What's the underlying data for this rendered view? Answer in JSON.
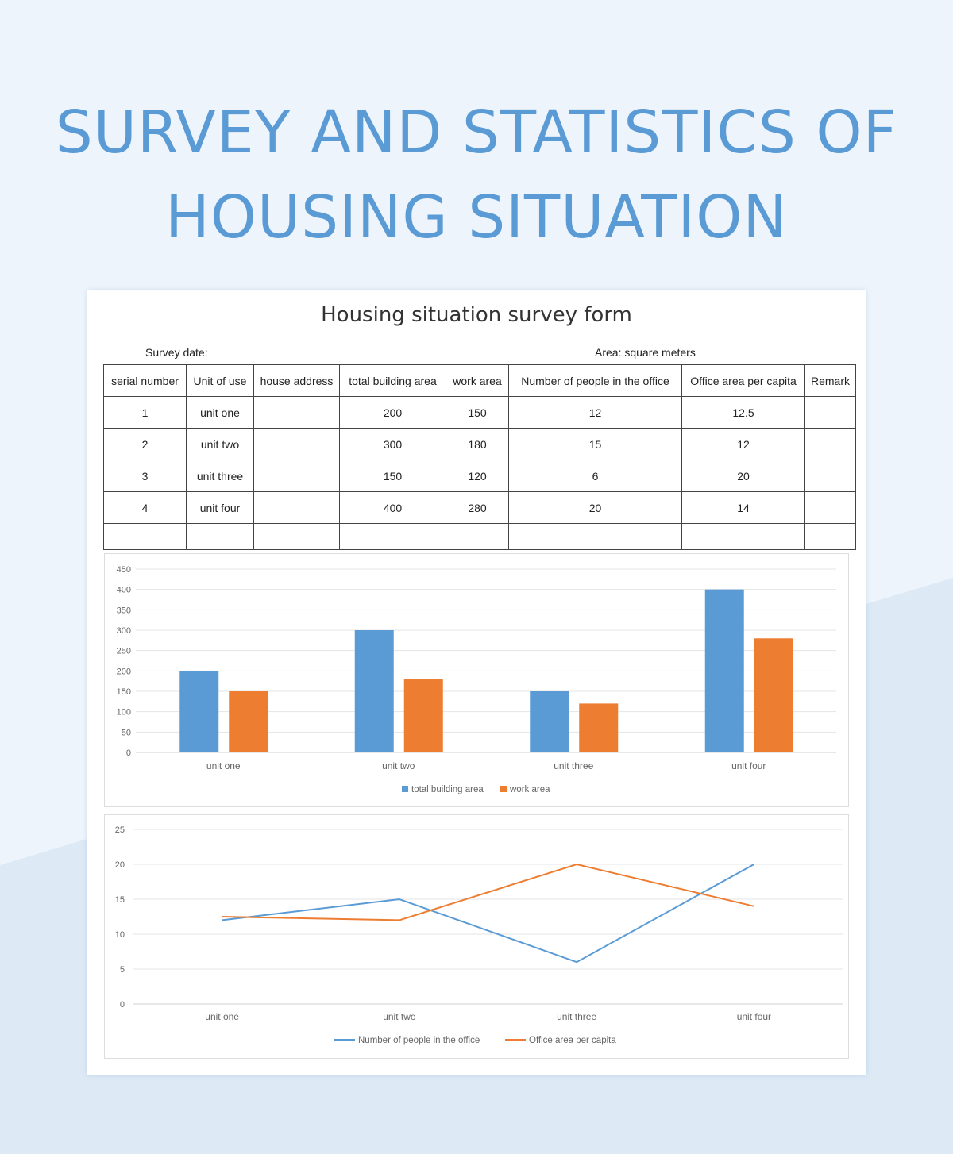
{
  "page": {
    "title_line1": "SURVEY AND STATISTICS OF",
    "title_line2": "HOUSING SITUATION",
    "accent": "#5b9bd5"
  },
  "form": {
    "title": "Housing situation survey form",
    "survey_date_label": "Survey date:",
    "area_unit_label": "Area: square meters",
    "columns": [
      "serial number",
      "Unit of use",
      "house address",
      "total building area",
      "work area",
      "Number of people in the office",
      "Office area per capita",
      "Remark"
    ],
    "rows": [
      [
        "1",
        "unit one",
        "",
        "200",
        "150",
        "12",
        "12.5",
        ""
      ],
      [
        "2",
        "unit two",
        "",
        "300",
        "180",
        "15",
        "12",
        ""
      ],
      [
        "3",
        "unit three",
        "",
        "150",
        "120",
        "6",
        "20",
        ""
      ],
      [
        "4",
        "unit four",
        "",
        "400",
        "280",
        "20",
        "14",
        ""
      ],
      [
        "",
        "",
        "",
        "",
        "",
        "",
        "",
        ""
      ]
    ]
  },
  "chart_data": [
    {
      "type": "bar",
      "categories": [
        "unit one",
        "unit two",
        "unit three",
        "unit four"
      ],
      "series": [
        {
          "name": "total building area",
          "values": [
            200,
            300,
            150,
            400
          ],
          "color": "#5b9bd5"
        },
        {
          "name": "work area",
          "values": [
            150,
            180,
            120,
            280
          ],
          "color": "#ed7d31"
        }
      ],
      "ylim": [
        0,
        450
      ],
      "yticks": [
        0,
        50,
        100,
        150,
        200,
        250,
        300,
        350,
        400,
        450
      ],
      "grid": true,
      "legend": "bottom"
    },
    {
      "type": "line",
      "categories": [
        "unit one",
        "unit two",
        "unit three",
        "unit four"
      ],
      "series": [
        {
          "name": "Number of people in the office",
          "values": [
            12,
            15,
            6,
            20
          ],
          "color": "#5b9bd5"
        },
        {
          "name": "Office area per capita",
          "values": [
            12.5,
            12,
            20,
            14
          ],
          "color": "#ed7d31"
        }
      ],
      "ylim": [
        0,
        25
      ],
      "yticks": [
        0,
        5,
        10,
        15,
        20,
        25
      ],
      "grid": true,
      "legend": "bottom"
    }
  ]
}
